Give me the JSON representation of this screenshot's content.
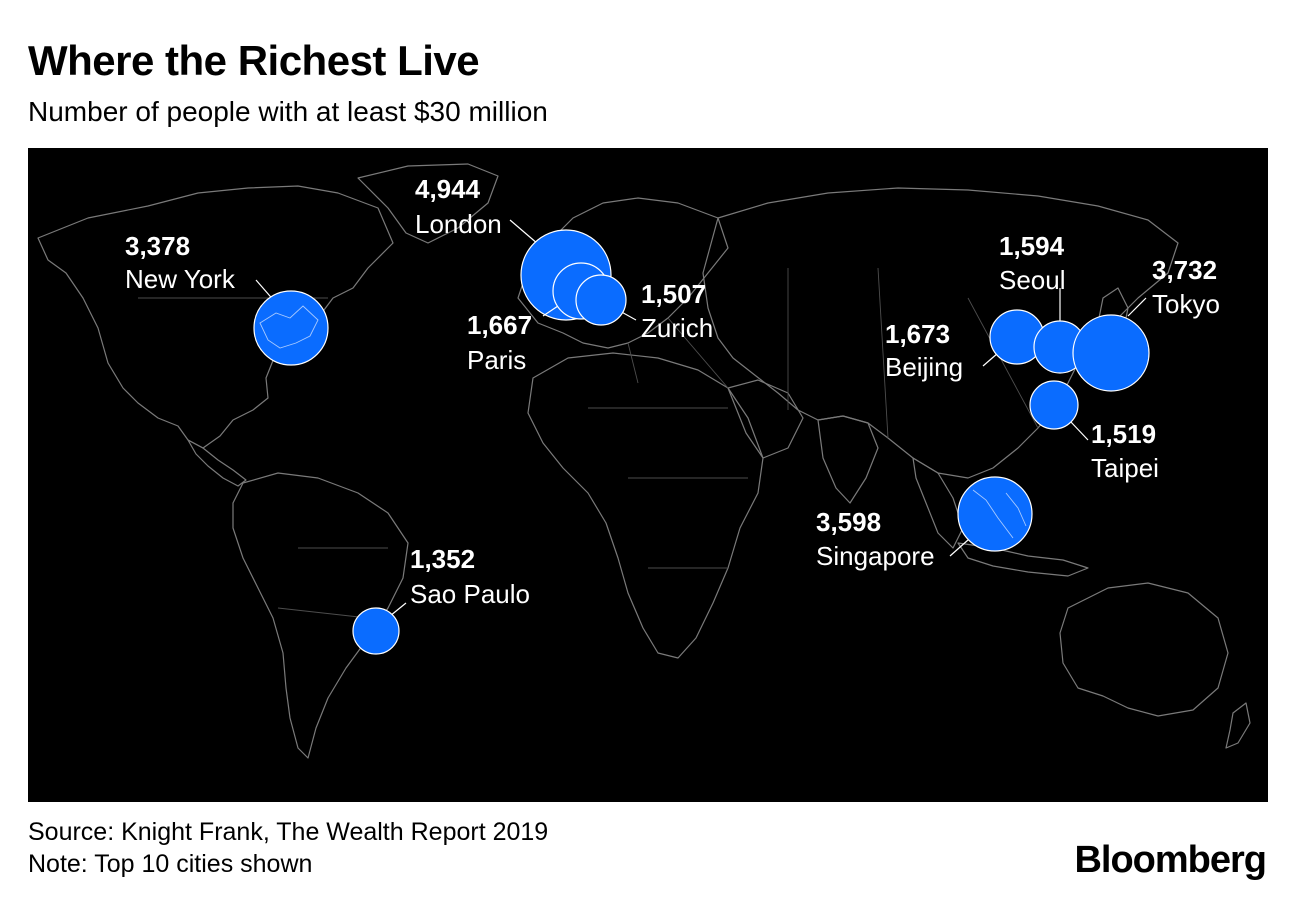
{
  "header": {
    "title": "Where the Richest Live",
    "subtitle": "Number of people with at least $30 million"
  },
  "footer": {
    "source": "Source: Knight Frank, The Wealth Report 2019",
    "note": "Note: Top 10 cities shown"
  },
  "brand": {
    "logo": "Bloomberg"
  },
  "colors": {
    "bubble": "#0a6cff",
    "map_background": "#000000",
    "coastline": "#7a7a7a"
  },
  "chart_data": {
    "type": "proportional-symbol-map",
    "series": [
      {
        "city": "London",
        "value": "4,944",
        "count": 4944
      },
      {
        "city": "Tokyo",
        "value": "3,732",
        "count": 3732
      },
      {
        "city": "Singapore",
        "value": "3,598",
        "count": 3598
      },
      {
        "city": "New York",
        "value": "3,378",
        "count": 3378
      },
      {
        "city": "Beijing",
        "value": "1,673",
        "count": 1673
      },
      {
        "city": "Paris",
        "value": "1,667",
        "count": 1667
      },
      {
        "city": "Seoul",
        "value": "1,594",
        "count": 1594
      },
      {
        "city": "Taipei",
        "value": "1,519",
        "count": 1519
      },
      {
        "city": "Zurich",
        "value": "1,507",
        "count": 1507
      },
      {
        "city": "Sao Paulo",
        "value": "1,352",
        "count": 1352
      }
    ]
  }
}
